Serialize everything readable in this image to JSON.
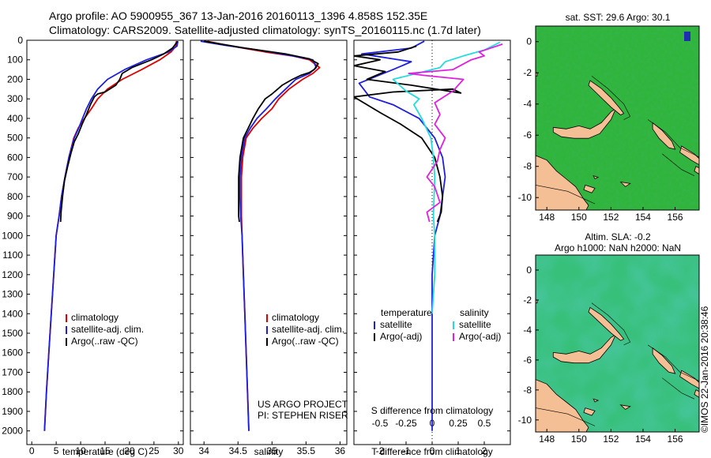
{
  "header": {
    "line1": "Argo profile: AO 5900955_367 13-Jan-2016 20160113_1396 4.858S 152.35E",
    "line2": "Climatology: CARS2009. Satellite-adjusted climatology: synTS_20160115.nc (1.7d later)"
  },
  "colors": {
    "red": "#e00000",
    "blue": "#1e1ee0",
    "black": "#000000",
    "cyan": "#22dddd",
    "magenta": "#e020e0",
    "land": "#f5bf95",
    "ocean_sst": "#33c23c",
    "ocean_sla": "#3cc08a"
  },
  "chart_data": [
    {
      "type": "line",
      "title": "",
      "xlabel": "temperature (deg C)",
      "ylabel": "",
      "xlim": [
        -1,
        31
      ],
      "ylim": [
        2070,
        0
      ],
      "xticks": [
        "0",
        "5",
        "10",
        "15",
        "20",
        "25",
        "30"
      ],
      "yticks": [
        "0",
        "100",
        "200",
        "300",
        "400",
        "500",
        "600",
        "700",
        "800",
        "900",
        "1000",
        "1100",
        "1200",
        "1300",
        "1400",
        "1500",
        "1600",
        "1700",
        "1800",
        "1900",
        "2000"
      ],
      "legend": [
        "climatology",
        "satellite-adj. clim.",
        "Argo(..raw -QC)"
      ],
      "series": [
        {
          "name": "climatology",
          "color": "red",
          "points": [
            [
              29.6,
              5
            ],
            [
              29.5,
              30
            ],
            [
              28.5,
              60
            ],
            [
              26.2,
              100
            ],
            [
              22.5,
              150
            ],
            [
              18.5,
              200
            ],
            [
              15.5,
              250
            ],
            [
              13.5,
              300
            ],
            [
              12.2,
              350
            ],
            [
              10.8,
              400
            ],
            [
              9.5,
              450
            ],
            [
              8.6,
              500
            ],
            [
              7.6,
              600
            ],
            [
              6.8,
              700
            ],
            [
              6.1,
              800
            ],
            [
              5.6,
              900
            ],
            [
              5.0,
              1000
            ],
            [
              4.5,
              1200
            ],
            [
              4.0,
              1400
            ],
            [
              3.5,
              1600
            ],
            [
              3.0,
              1800
            ],
            [
              2.6,
              2000
            ]
          ]
        },
        {
          "name": "satellite-adj. clim.",
          "color": "blue",
          "points": [
            [
              29.9,
              5
            ],
            [
              29.7,
              30
            ],
            [
              28.0,
              60
            ],
            [
              23.5,
              100
            ],
            [
              19.0,
              150
            ],
            [
              15.5,
              200
            ],
            [
              13.5,
              250
            ],
            [
              12.2,
              300
            ],
            [
              11.2,
              350
            ],
            [
              10.4,
              400
            ],
            [
              9.6,
              450
            ],
            [
              8.7,
              500
            ],
            [
              7.6,
              600
            ],
            [
              6.8,
              700
            ],
            [
              6.1,
              800
            ],
            [
              5.6,
              900
            ],
            [
              5.0,
              1000
            ],
            [
              4.5,
              1200
            ],
            [
              4.0,
              1400
            ],
            [
              3.5,
              1600
            ],
            [
              3.0,
              1800
            ],
            [
              2.6,
              2000
            ]
          ]
        },
        {
          "name": "Argo(..raw -QC)",
          "color": "black",
          "points": [
            [
              29.8,
              5
            ],
            [
              29.4,
              20
            ],
            [
              28.8,
              40
            ],
            [
              27.0,
              70
            ],
            [
              24.5,
              100
            ],
            [
              20.5,
              140
            ],
            [
              18.5,
              170
            ],
            [
              18.0,
              200
            ],
            [
              17.2,
              230
            ],
            [
              15.0,
              265
            ],
            [
              13.5,
              275
            ],
            [
              12.8,
              290
            ],
            [
              12.0,
              330
            ],
            [
              11.2,
              380
            ],
            [
              10.3,
              430
            ],
            [
              9.5,
              480
            ],
            [
              8.7,
              520
            ],
            [
              8.0,
              580
            ],
            [
              7.3,
              650
            ],
            [
              6.7,
              720
            ],
            [
              6.3,
              800
            ],
            [
              6.0,
              880
            ],
            [
              5.9,
              930
            ]
          ]
        }
      ]
    },
    {
      "type": "line",
      "xlabel": "salinity",
      "xlim": [
        33.8,
        36.1
      ],
      "ylim": [
        2070,
        0
      ],
      "xticks": [
        "34",
        "34.5",
        "35",
        "35.5",
        "36"
      ],
      "legend": [
        "climatology",
        "satellite-adj. clim.",
        "Argo(..raw -QC)"
      ],
      "annotation": [
        "US ARGO PROJECT",
        "PI: STEPHEN RISER"
      ],
      "series": [
        {
          "name": "climatology",
          "color": "red",
          "points": [
            [
              34.05,
              5
            ],
            [
              34.4,
              30
            ],
            [
              34.9,
              60
            ],
            [
              35.3,
              80
            ],
            [
              35.55,
              100
            ],
            [
              35.7,
              140
            ],
            [
              35.6,
              170
            ],
            [
              35.45,
              200
            ],
            [
              35.25,
              250
            ],
            [
              35.1,
              300
            ],
            [
              35.0,
              350
            ],
            [
              34.85,
              400
            ],
            [
              34.72,
              450
            ],
            [
              34.62,
              500
            ],
            [
              34.57,
              600
            ],
            [
              34.55,
              700
            ],
            [
              34.55,
              800
            ],
            [
              34.55,
              900
            ],
            [
              34.56,
              1000
            ],
            [
              34.58,
              1200
            ],
            [
              34.6,
              1400
            ],
            [
              34.62,
              1600
            ],
            [
              34.64,
              1800
            ],
            [
              34.66,
              2000
            ]
          ]
        },
        {
          "name": "satellite-adj. clim.",
          "color": "blue",
          "points": [
            [
              33.95,
              5
            ],
            [
              34.3,
              25
            ],
            [
              34.8,
              50
            ],
            [
              35.3,
              80
            ],
            [
              35.6,
              100
            ],
            [
              35.65,
              140
            ],
            [
              35.55,
              170
            ],
            [
              35.35,
              200
            ],
            [
              35.2,
              250
            ],
            [
              35.05,
              300
            ],
            [
              34.92,
              350
            ],
            [
              34.78,
              400
            ],
            [
              34.68,
              450
            ],
            [
              34.6,
              500
            ],
            [
              34.55,
              600
            ],
            [
              34.53,
              700
            ],
            [
              34.53,
              800
            ],
            [
              34.54,
              900
            ],
            [
              34.56,
              1000
            ],
            [
              34.58,
              1200
            ],
            [
              34.6,
              1400
            ],
            [
              34.62,
              1600
            ],
            [
              34.64,
              1800
            ],
            [
              34.66,
              2000
            ]
          ]
        },
        {
          "name": "Argo(..raw -QC)",
          "color": "black",
          "points": [
            [
              34.0,
              5
            ],
            [
              34.6,
              40
            ],
            [
              35.2,
              70
            ],
            [
              35.55,
              95
            ],
            [
              35.68,
              120
            ],
            [
              35.62,
              150
            ],
            [
              35.55,
              165
            ],
            [
              35.42,
              180
            ],
            [
              35.3,
              200
            ],
            [
              35.15,
              230
            ],
            [
              35.05,
              260
            ],
            [
              35.0,
              275
            ],
            [
              34.9,
              300
            ],
            [
              34.8,
              350
            ],
            [
              34.72,
              400
            ],
            [
              34.65,
              450
            ],
            [
              34.58,
              500
            ],
            [
              34.53,
              600
            ],
            [
              34.51,
              700
            ],
            [
              34.51,
              800
            ],
            [
              34.51,
              900
            ],
            [
              34.52,
              930
            ]
          ]
        }
      ]
    },
    {
      "type": "line",
      "xlabel": "T difference from climatology",
      "x2label": "S difference from climatology",
      "xlim": [
        -3,
        3
      ],
      "ylim": [
        2070,
        0
      ],
      "xticks": [
        "-2",
        "-1",
        "0",
        "1",
        "2"
      ],
      "x2ticks": [
        "-0.5",
        "-0.25",
        "0",
        "0.25",
        "0.5"
      ],
      "legend_t": {
        "title": "temperature",
        "items": [
          "satellite",
          "Argo(-adj)"
        ]
      },
      "legend_s": {
        "title": "salinity",
        "items": [
          "satellite",
          "Argo(-adj)"
        ]
      },
      "series": [
        {
          "name": "temperature satellite",
          "color": "blue",
          "points": [
            [
              0,
              2000
            ],
            [
              0,
              1800
            ],
            [
              0,
              1600
            ],
            [
              0,
              1400
            ],
            [
              0,
              1200
            ],
            [
              0.1,
              1000
            ],
            [
              0.3,
              900
            ],
            [
              0.5,
              700
            ],
            [
              0.4,
              600
            ],
            [
              0.1,
              500
            ],
            [
              -0.5,
              400
            ],
            [
              -1.5,
              330
            ],
            [
              -2.4,
              290
            ],
            [
              -2.8,
              220
            ],
            [
              -1.5,
              150
            ],
            [
              -0.8,
              110
            ],
            [
              -2.7,
              70
            ],
            [
              -0.8,
              40
            ],
            [
              -0.3,
              5
            ]
          ]
        },
        {
          "name": "temperature Argo(-adj)",
          "color": "black",
          "points": [
            [
              0.2,
              930
            ],
            [
              0.35,
              880
            ],
            [
              0.4,
              800
            ],
            [
              0.3,
              700
            ],
            [
              0.1,
              600
            ],
            [
              -0.4,
              500
            ],
            [
              -1.2,
              430
            ],
            [
              -2.0,
              370
            ],
            [
              -3.0,
              290
            ],
            [
              -1.5,
              265
            ],
            [
              0.8,
              250
            ],
            [
              1.1,
              270
            ],
            [
              -0.8,
              230
            ],
            [
              -2.5,
              200
            ],
            [
              -1.8,
              160
            ],
            [
              -3.0,
              130
            ],
            [
              -2.0,
              100
            ],
            [
              -3.0,
              80
            ],
            [
              -1.3,
              60
            ],
            [
              -0.6,
              30
            ]
          ]
        },
        {
          "name": "salinity satellite",
          "color": "cyan",
          "points": [
            [
              0,
              1400
            ],
            [
              0.1,
              1200
            ],
            [
              0.1,
              1000
            ],
            [
              0.05,
              900
            ],
            [
              0.1,
              700
            ],
            [
              0.05,
              600
            ],
            [
              -0.05,
              500
            ],
            [
              -0.4,
              400
            ],
            [
              -0.7,
              330
            ],
            [
              -0.5,
              300
            ],
            [
              -1.0,
              260
            ],
            [
              -1.5,
              200
            ],
            [
              0.3,
              140
            ],
            [
              0.5,
              110
            ],
            [
              1.2,
              80
            ],
            [
              2.0,
              50
            ],
            [
              2.6,
              10
            ]
          ]
        },
        {
          "name": "salinity Argo(-adj)",
          "color": "magenta",
          "points": [
            [
              -0.1,
              930
            ],
            [
              -0.2,
              880
            ],
            [
              0.3,
              830
            ],
            [
              0.1,
              750
            ],
            [
              -0.2,
              700
            ],
            [
              0.2,
              620
            ],
            [
              0.3,
              560
            ],
            [
              0.5,
              500
            ],
            [
              0.1,
              430
            ],
            [
              0.3,
              380
            ],
            [
              0.1,
              320
            ],
            [
              0.8,
              260
            ],
            [
              1.2,
              200
            ],
            [
              -0.3,
              180
            ],
            [
              -0.9,
              170
            ],
            [
              0.8,
              150
            ],
            [
              1.5,
              100
            ],
            [
              2.0,
              80
            ],
            [
              1.8,
              60
            ],
            [
              2.7,
              20
            ]
          ]
        }
      ]
    },
    {
      "type": "heatmap",
      "title": "sat. SST: 29.6 Argo: 30.1",
      "xlim": [
        147.3,
        157.5
      ],
      "ylim": [
        -10.8,
        1.0
      ],
      "xticks": [
        "148",
        "150",
        "152",
        "154",
        "156"
      ],
      "yticks": [
        "0",
        "-2",
        "-4",
        "-6",
        "-8",
        "-10"
      ]
    },
    {
      "type": "heatmap",
      "title": "Altim. SLA: -0.2",
      "subtitle": "Argo h1000: NaN h2000: NaN",
      "xlim": [
        147.3,
        157.5
      ],
      "ylim": [
        -10.8,
        1.0
      ],
      "xticks": [
        "148",
        "150",
        "152",
        "154",
        "156"
      ],
      "yticks": [
        "0",
        "-2",
        "-4",
        "-6",
        "-8",
        "-10"
      ]
    }
  ],
  "footer": {
    "timestamp": "©IMOS 22-Jan-2016 20:38:46"
  }
}
